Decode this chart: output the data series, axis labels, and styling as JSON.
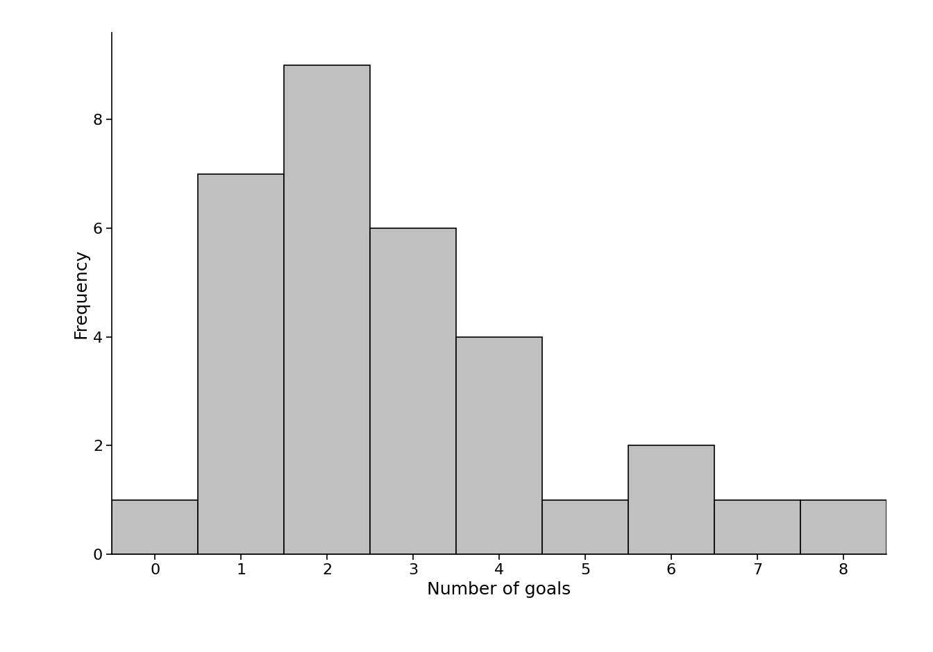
{
  "categories": [
    0,
    1,
    2,
    3,
    4,
    5,
    6,
    7,
    8
  ],
  "frequencies": [
    1,
    7,
    9,
    6,
    4,
    1,
    2,
    1,
    1
  ],
  "bar_color": "#c0c0c0",
  "bar_edge_color": "#000000",
  "bar_edge_width": 1.2,
  "xlabel": "Number of goals",
  "ylabel": "Frequency",
  "xlim": [
    -0.5,
    8.5
  ],
  "ylim": [
    0,
    9.6
  ],
  "yticks": [
    0,
    2,
    4,
    6,
    8
  ],
  "xticks": [
    0,
    1,
    2,
    3,
    4,
    5,
    6,
    7,
    8
  ],
  "xlabel_fontsize": 18,
  "ylabel_fontsize": 18,
  "tick_fontsize": 16,
  "background_color": "#ffffff",
  "bar_width": 1.0
}
